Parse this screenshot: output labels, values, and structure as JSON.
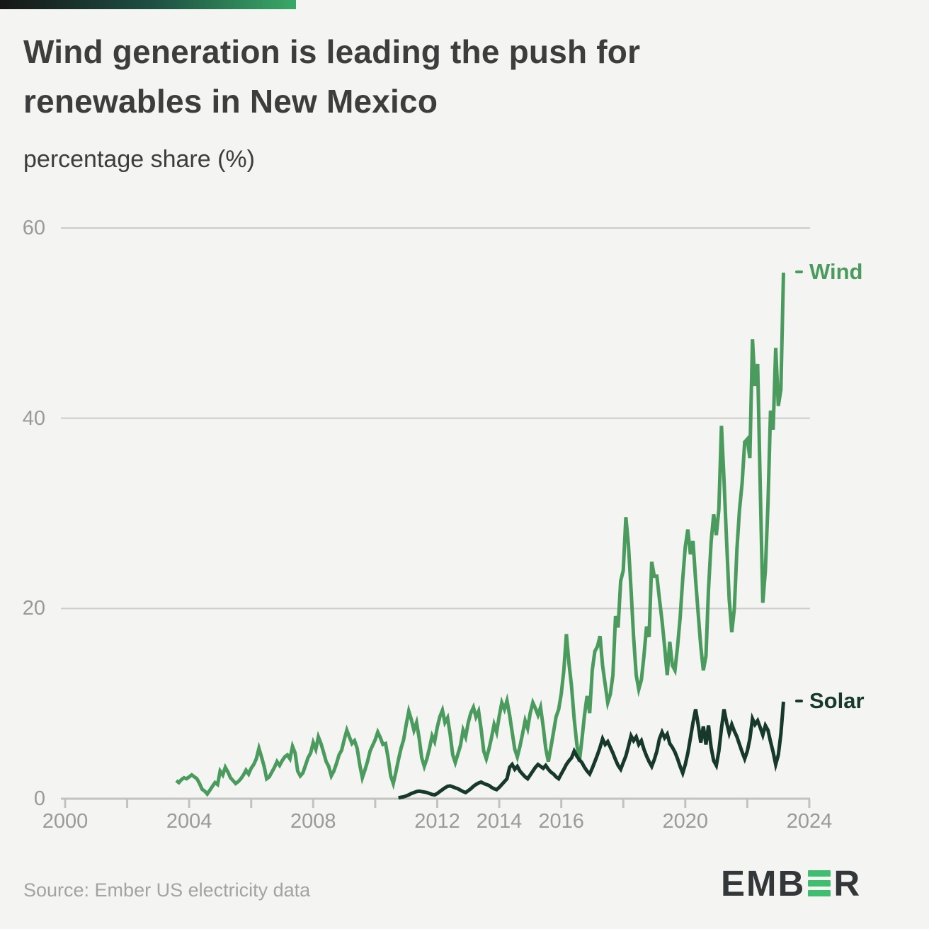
{
  "header": {
    "title_lines": [
      "Wind generation is leading the push for",
      "renewables in New Mexico"
    ],
    "subtitle": "percentage share (%)"
  },
  "footer": {
    "source": "Source: Ember US electricity data",
    "logo_text_pre": "EMB",
    "logo_text_post": "R",
    "logo_icon": "ember-e-bars-icon"
  },
  "colors": {
    "background": "#f4f4f2",
    "title_ink": "#3d3d3d",
    "tick_label": "#9a9a9a",
    "gridline": "#cccccc",
    "axis": "#c2c2c2",
    "wind": "#4c9b5e",
    "solar": "#16392b",
    "logo_green": "#3fbe72",
    "topbar_gradient": [
      "#161616",
      "#1e4f43",
      "#39a967"
    ]
  },
  "chart_data": {
    "type": "line",
    "title": "Wind generation is leading the push for renewables in New Mexico",
    "subtitle": "percentage share (%)",
    "xlabel": "",
    "ylabel": "percentage share (%)",
    "grid": "horizontal",
    "xlim": [
      2000,
      2024
    ],
    "ylim": [
      0,
      62
    ],
    "x_axis": {
      "ticks": [
        2000,
        2002,
        2004,
        2006,
        2008,
        2010,
        2012,
        2014,
        2016,
        2018,
        2020,
        2022,
        2024
      ],
      "labels": [
        {
          "year": 2000,
          "text": "2000"
        },
        {
          "year": 2004,
          "text": "2004"
        },
        {
          "year": 2008,
          "text": "2008"
        },
        {
          "year": 2012,
          "text": "2012"
        },
        {
          "year": 2014,
          "text": "2014"
        },
        {
          "year": 2016,
          "text": "2016"
        },
        {
          "year": 2020,
          "text": "2020"
        },
        {
          "year": 2024,
          "text": "2024"
        }
      ]
    },
    "y_axis": {
      "ticks": [
        0,
        20,
        40,
        60
      ],
      "labels": [
        "0",
        "20",
        "40",
        "60"
      ]
    },
    "legend_position": "end-of-line",
    "series": [
      {
        "name": "Wind",
        "color": "#4c9b5e",
        "unit": "%",
        "cadence": "monthly",
        "start_year_decimal": 2003.5833,
        "values": [
          1.9,
          1.7,
          2.0,
          2.2,
          2.1,
          2.3,
          2.5,
          2.3,
          2.1,
          1.6,
          1.0,
          0.8,
          0.5,
          0.9,
          1.3,
          1.7,
          1.5,
          2.9,
          2.5,
          3.3,
          2.8,
          2.2,
          1.9,
          1.6,
          1.8,
          2.1,
          2.5,
          3.0,
          2.6,
          3.2,
          3.6,
          4.2,
          5.3,
          4.4,
          3.4,
          2.1,
          2.3,
          2.8,
          3.3,
          3.9,
          3.5,
          4.0,
          4.4,
          4.6,
          4.2,
          5.5,
          4.8,
          2.9,
          2.4,
          2.7,
          3.5,
          4.3,
          4.8,
          5.9,
          5.2,
          6.5,
          5.8,
          4.9,
          3.9,
          3.4,
          2.4,
          2.9,
          3.7,
          4.6,
          5.1,
          6.2,
          7.2,
          6.5,
          5.8,
          6.1,
          5.3,
          3.6,
          2.2,
          3.0,
          3.9,
          5.0,
          5.6,
          6.2,
          7.0,
          6.4,
          5.7,
          5.8,
          4.3,
          2.4,
          1.6,
          2.8,
          4.1,
          5.3,
          6.2,
          7.8,
          9.2,
          8.3,
          7.2,
          8.0,
          6.4,
          4.3,
          3.4,
          4.2,
          5.3,
          6.6,
          6.0,
          7.5,
          8.6,
          9.3,
          8.0,
          8.5,
          6.8,
          4.6,
          3.8,
          4.7,
          5.6,
          7.2,
          6.5,
          8.0,
          9.0,
          9.6,
          8.6,
          9.2,
          7.3,
          5.0,
          4.2,
          5.2,
          6.4,
          7.8,
          7.0,
          8.7,
          10.1,
          9.4,
          10.3,
          8.8,
          7.0,
          5.2,
          4.4,
          5.5,
          6.8,
          8.2,
          7.4,
          9.0,
          10.1,
          9.5,
          8.8,
          9.6,
          7.6,
          5.3,
          3.9,
          5.4,
          7.0,
          8.6,
          9.4,
          11.0,
          13.5,
          17.3,
          14.2,
          11.8,
          8.4,
          5.8,
          3.9,
          6.2,
          8.8,
          10.8,
          9.0,
          13.5,
          15.5,
          16.0,
          17.1,
          14.0,
          12.0,
          10.1,
          11.0,
          13.0,
          19.2,
          18.0,
          22.9,
          24.0,
          29.6,
          26.7,
          22.0,
          17.0,
          13.0,
          11.5,
          12.5,
          15.0,
          18.1,
          17.0,
          24.9,
          23.4,
          23.4,
          21.0,
          18.7,
          16.0,
          13.0,
          16.5,
          14.0,
          13.5,
          16.0,
          19.0,
          23.0,
          26.5,
          28.3,
          25.7,
          27.1,
          23.0,
          19.5,
          16.0,
          13.5,
          15.0,
          22.0,
          27.0,
          29.9,
          27.7,
          30.4,
          39.2,
          33.5,
          27.0,
          21.0,
          17.5,
          20.0,
          26.3,
          30.4,
          33.2,
          37.5,
          37.8,
          35.8,
          48.3,
          43.4,
          45.7,
          33.0,
          20.6,
          24.0,
          31.0,
          40.8,
          38.8,
          47.4,
          41.3,
          43.0,
          55.3
        ]
      },
      {
        "name": "Solar",
        "color": "#16392b",
        "unit": "%",
        "cadence": "monthly",
        "start_year_decimal": 2010.75,
        "values": [
          0.1,
          0.15,
          0.2,
          0.3,
          0.4,
          0.55,
          0.65,
          0.75,
          0.8,
          0.75,
          0.7,
          0.65,
          0.55,
          0.45,
          0.4,
          0.55,
          0.75,
          0.95,
          1.15,
          1.3,
          1.35,
          1.25,
          1.15,
          1.05,
          0.9,
          0.75,
          0.65,
          0.85,
          1.05,
          1.3,
          1.5,
          1.65,
          1.75,
          1.6,
          1.5,
          1.4,
          1.2,
          1.05,
          0.95,
          1.2,
          1.5,
          1.8,
          2.1,
          3.3,
          3.6,
          3.1,
          3.4,
          2.9,
          2.6,
          2.3,
          2.1,
          2.5,
          2.9,
          3.3,
          3.6,
          3.4,
          3.2,
          3.5,
          3.1,
          2.8,
          2.6,
          2.3,
          2.1,
          2.6,
          3.1,
          3.6,
          4.0,
          4.3,
          5.0,
          4.5,
          4.1,
          3.8,
          3.3,
          2.9,
          2.6,
          3.2,
          3.9,
          4.6,
          5.4,
          6.3,
          5.7,
          6.0,
          5.4,
          4.8,
          4.1,
          3.5,
          3.1,
          3.8,
          4.5,
          5.5,
          6.6,
          6.1,
          6.5,
          5.7,
          6.1,
          5.2,
          4.5,
          3.9,
          3.4,
          4.1,
          5.0,
          6.3,
          7.0,
          6.4,
          6.8,
          5.8,
          5.4,
          4.9,
          4.2,
          3.4,
          2.7,
          3.6,
          4.8,
          6.4,
          8.0,
          9.4,
          7.8,
          5.9,
          7.6,
          5.7,
          7.7,
          5.4,
          4.0,
          3.5,
          5.0,
          7.4,
          9.4,
          8.0,
          6.9,
          7.8,
          7.1,
          6.5,
          5.7,
          4.9,
          4.2,
          5.0,
          6.3,
          8.4,
          7.8,
          8.2,
          7.5,
          6.7,
          7.7,
          7.2,
          6.0,
          4.9,
          3.6,
          4.6,
          6.8,
          10.2
        ]
      }
    ]
  }
}
